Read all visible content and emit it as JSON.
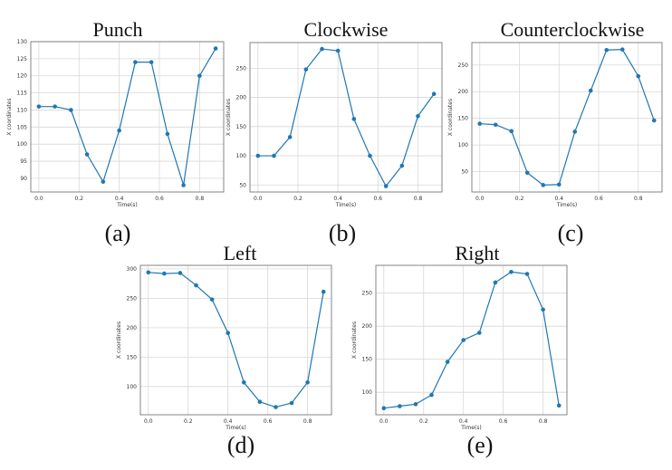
{
  "chart_data": [
    {
      "type": "line",
      "title": "Punch",
      "panel_label": "(a)",
      "xlabel": "Time(s)",
      "ylabel": "X coordinates",
      "grid": true,
      "color": "#1f77b4",
      "x": [
        0,
        0.08,
        0.16,
        0.24,
        0.32,
        0.4,
        0.48,
        0.56,
        0.64,
        0.72,
        0.8,
        0.88
      ],
      "y": [
        111,
        111,
        110,
        97,
        89,
        104,
        124,
        124,
        103,
        88,
        120,
        128
      ],
      "xlim": [
        -0.04,
        0.92
      ],
      "ylim": [
        86,
        130
      ],
      "xticks": [
        0,
        0.2,
        0.4,
        0.6,
        0.8
      ],
      "yticks": [
        90,
        95,
        100,
        105,
        110,
        115,
        120,
        125,
        130
      ]
    },
    {
      "type": "line",
      "title": "Clockwise",
      "panel_label": "(b)",
      "xlabel": "Time(s)",
      "ylabel": "X coordinates",
      "grid": true,
      "color": "#1f77b4",
      "x": [
        0,
        0.08,
        0.16,
        0.24,
        0.32,
        0.4,
        0.48,
        0.56,
        0.64,
        0.72,
        0.8,
        0.88
      ],
      "y": [
        100,
        100,
        132,
        248,
        283,
        280,
        163,
        100,
        48,
        83,
        168,
        206
      ],
      "xlim": [
        -0.04,
        0.92
      ],
      "ylim": [
        38,
        294
      ],
      "xticks": [
        0,
        0.2,
        0.4,
        0.6,
        0.8
      ],
      "yticks": [
        50,
        100,
        150,
        200,
        250
      ]
    },
    {
      "type": "line",
      "title": "Counterclockwise",
      "panel_label": "(c)",
      "xlabel": "Time(s)",
      "ylabel": "X coordinates",
      "grid": true,
      "color": "#1f77b4",
      "x": [
        0,
        0.08,
        0.16,
        0.24,
        0.32,
        0.4,
        0.48,
        0.56,
        0.64,
        0.72,
        0.8,
        0.88
      ],
      "y": [
        140,
        138,
        126,
        48,
        25,
        26,
        125,
        202,
        278,
        279,
        229,
        146
      ],
      "xlim": [
        -0.04,
        0.92
      ],
      "ylim": [
        12,
        292
      ],
      "xticks": [
        0,
        0.2,
        0.4,
        0.6,
        0.8
      ],
      "yticks": [
        50,
        100,
        150,
        200,
        250
      ]
    },
    {
      "type": "line",
      "title": "Left",
      "panel_label": "(d)",
      "xlabel": "Time(s)",
      "ylabel": "X coordinates",
      "grid": true,
      "color": "#1f77b4",
      "x": [
        0,
        0.08,
        0.16,
        0.24,
        0.32,
        0.4,
        0.48,
        0.56,
        0.64,
        0.72,
        0.8,
        0.88
      ],
      "y": [
        294,
        292,
        293,
        272,
        248,
        191,
        107,
        74,
        65,
        72,
        107,
        261
      ],
      "xlim": [
        -0.04,
        0.92
      ],
      "ylim": [
        52,
        306
      ],
      "xticks": [
        0,
        0.2,
        0.4,
        0.6,
        0.8
      ],
      "yticks": [
        100,
        150,
        200,
        250,
        300
      ]
    },
    {
      "type": "line",
      "title": "Right",
      "panel_label": "(e)",
      "xlabel": "Time(s)",
      "ylabel": "X coordinates",
      "grid": true,
      "color": "#1f77b4",
      "x": [
        0,
        0.08,
        0.16,
        0.24,
        0.32,
        0.4,
        0.48,
        0.56,
        0.64,
        0.72,
        0.8,
        0.88
      ],
      "y": [
        76,
        79,
        82,
        96,
        146,
        179,
        190,
        266,
        282,
        279,
        225,
        80
      ],
      "xlim": [
        -0.04,
        0.92
      ],
      "ylim": [
        66,
        292
      ],
      "xticks": [
        0,
        0.2,
        0.4,
        0.6,
        0.8
      ],
      "yticks": [
        100,
        150,
        200,
        250
      ]
    }
  ]
}
